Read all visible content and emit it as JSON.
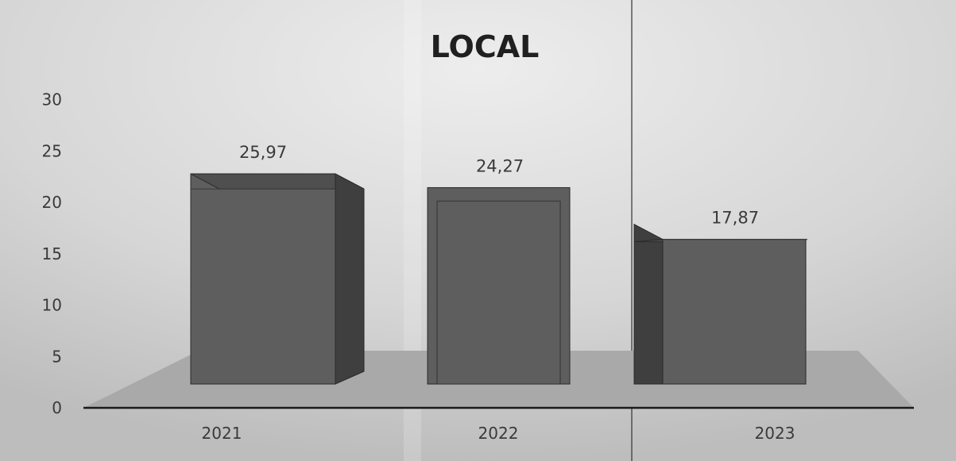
{
  "chart_data": {
    "type": "bar",
    "title": "LOCAL",
    "xlabel": "",
    "ylabel": "",
    "categories": [
      "2021",
      "2022",
      "2023"
    ],
    "values": [
      25.97,
      24.27,
      17.87
    ],
    "value_labels": [
      "25,97",
      "24,27",
      "17,87"
    ],
    "yticks": [
      "0",
      "5",
      "10",
      "15",
      "20",
      "25",
      "30"
    ],
    "ylim": [
      0,
      30
    ],
    "grid": false,
    "legend": "none",
    "style": "3d-column",
    "colors": {
      "bar_front": "#5e5e5e",
      "bar_side": "#3f3f3f",
      "bar_top": "#4f4f4f",
      "floor": "#a9a9a9",
      "axis": "#1a1a1a",
      "background": "#cfcfcf"
    }
  }
}
